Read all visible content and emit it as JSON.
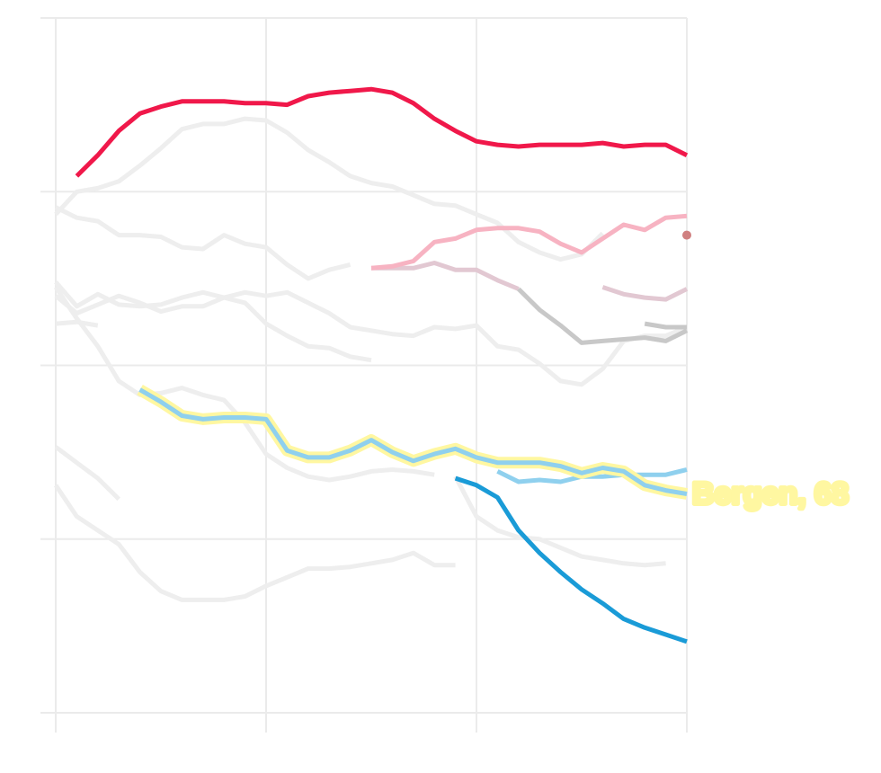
{
  "chart_data": {
    "type": "line",
    "x": [
      0,
      1,
      2,
      3,
      4,
      5,
      6,
      7,
      8,
      9,
      10,
      11,
      12,
      13,
      14,
      15,
      16,
      17,
      18,
      19,
      20,
      21,
      22,
      23,
      24,
      25,
      26,
      27,
      28,
      29,
      30
    ],
    "xlim": [
      0,
      30
    ],
    "xticks": [
      0,
      10,
      20,
      30
    ],
    "ylim": [
      0,
      400
    ],
    "yticks": [
      0,
      100,
      200,
      300,
      400
    ],
    "grid": true,
    "series": [
      {
        "color": "#eeeeee",
        "values": [
          287,
          300,
          302,
          306,
          315,
          325,
          336,
          339,
          339,
          342,
          341,
          334,
          324,
          317,
          309,
          305,
          303,
          298,
          293,
          292,
          287,
          282,
          271,
          265,
          261,
          264,
          276,
          null,
          null,
          null,
          null
        ]
      },
      {
        "color": "#eeeeee",
        "values": [
          291,
          285,
          283,
          275,
          275,
          274,
          268,
          267,
          275,
          270,
          268,
          258,
          250,
          255,
          258,
          null,
          null,
          null,
          null,
          null,
          null,
          null,
          null,
          null,
          null,
          null,
          null,
          null,
          null,
          null,
          null
        ]
      },
      {
        "color": "#eeeeee",
        "values": [
          248,
          234,
          241,
          235,
          234,
          235,
          239,
          242,
          239,
          242,
          240,
          242,
          236,
          230,
          222,
          220,
          218,
          217,
          222,
          221,
          223,
          211,
          209,
          201,
          191,
          189,
          198,
          214,
          217,
          217,
          222
        ]
      },
      {
        "color": "#eeeeee",
        "values": [
          240,
          230,
          235,
          240,
          236,
          231,
          234,
          234,
          239,
          236,
          224,
          217,
          211,
          210,
          205,
          203,
          null,
          null,
          null,
          null,
          null,
          null,
          null,
          null,
          null,
          null,
          null,
          null,
          null,
          null,
          null
        ]
      },
      {
        "color": "#eeeeee",
        "values": [
          245,
          227,
          211,
          191,
          183,
          184,
          187,
          183,
          180,
          167,
          149,
          141,
          136,
          134,
          136,
          139,
          140,
          139,
          137,
          null,
          null,
          null,
          null,
          null,
          null,
          null,
          null,
          null,
          null,
          null,
          null
        ]
      },
      {
        "color": "#eeeeee",
        "values": [
          131,
          113,
          105,
          97,
          81,
          70,
          65,
          65,
          65,
          67,
          73,
          78,
          83,
          83,
          84,
          86,
          88,
          92,
          85,
          85,
          null,
          null,
          null,
          null,
          null,
          null,
          null,
          null,
          null,
          null,
          null
        ]
      },
      {
        "color": "#eeeeee",
        "values": [
          153,
          144,
          135,
          123,
          null,
          null,
          null,
          null,
          null,
          null,
          null,
          null,
          null,
          null,
          null,
          null,
          null,
          null,
          null,
          null,
          null,
          null,
          null,
          null,
          null,
          null,
          null,
          null,
          null,
          null,
          null
        ]
      },
      {
        "color": "#eeeeee",
        "values": [
          null,
          null,
          null,
          null,
          null,
          null,
          null,
          null,
          null,
          null,
          null,
          null,
          null,
          null,
          null,
          null,
          null,
          null,
          null,
          136,
          113,
          105,
          101,
          100,
          95,
          90,
          88,
          86,
          85,
          86,
          null
        ]
      },
      {
        "color": "#eeeeee",
        "values": [
          224,
          225,
          223,
          null,
          null,
          null,
          null,
          null,
          null,
          null,
          null,
          null,
          null,
          null,
          null,
          null,
          null,
          null,
          null,
          null,
          null,
          null,
          null,
          null,
          null,
          null,
          null,
          null,
          null,
          null,
          null
        ]
      },
      {
        "color": "#e2c8d2",
        "values": [
          null,
          null,
          null,
          null,
          null,
          null,
          null,
          null,
          null,
          null,
          null,
          null,
          null,
          null,
          null,
          256,
          256,
          256,
          259,
          255,
          255,
          249,
          244,
          null,
          null,
          null,
          null,
          null,
          null,
          null,
          null
        ]
      },
      {
        "color": "#c8c8c8",
        "values": [
          null,
          null,
          null,
          null,
          null,
          null,
          null,
          null,
          null,
          null,
          null,
          null,
          null,
          null,
          null,
          null,
          null,
          null,
          null,
          null,
          null,
          null,
          244,
          232,
          223,
          213,
          214,
          215,
          216,
          214,
          220
        ]
      },
      {
        "color": "#e2c8d2",
        "values": [
          null,
          null,
          null,
          null,
          null,
          null,
          null,
          null,
          null,
          null,
          null,
          null,
          null,
          null,
          null,
          null,
          null,
          null,
          null,
          null,
          null,
          null,
          null,
          null,
          null,
          null,
          245,
          241,
          239,
          238,
          244
        ]
      },
      {
        "color": "#c8c8c8",
        "values": [
          null,
          null,
          null,
          null,
          null,
          null,
          null,
          null,
          null,
          null,
          null,
          null,
          null,
          null,
          null,
          null,
          null,
          null,
          null,
          null,
          null,
          null,
          null,
          null,
          null,
          null,
          null,
          null,
          224,
          222,
          222
        ]
      },
      {
        "color": "#f7b3c2",
        "values": [
          null,
          null,
          null,
          null,
          null,
          null,
          null,
          null,
          null,
          null,
          null,
          null,
          null,
          null,
          null,
          256,
          257,
          260,
          271,
          273,
          278,
          279,
          279,
          277,
          270,
          265,
          273,
          281,
          278,
          285,
          286
        ]
      },
      {
        "color": "#d08080",
        "values": [
          null,
          null,
          null,
          null,
          null,
          null,
          null,
          null,
          null,
          null,
          null,
          null,
          null,
          null,
          null,
          null,
          null,
          null,
          null,
          null,
          null,
          null,
          null,
          null,
          null,
          null,
          null,
          null,
          null,
          null,
          275
        ]
      },
      {
        "color": "#f0184a",
        "values": [
          null,
          309,
          321,
          335,
          345,
          349,
          352,
          352,
          352,
          351,
          351,
          350,
          355,
          357,
          358,
          359,
          357,
          351,
          342,
          335,
          329,
          327,
          326,
          327,
          327,
          327,
          328,
          326,
          327,
          327,
          321
        ]
      },
      {
        "color": "#8fd0ee",
        "values": [
          null,
          null,
          null,
          null,
          null,
          null,
          null,
          null,
          null,
          null,
          null,
          null,
          null,
          null,
          null,
          null,
          null,
          null,
          null,
          null,
          null,
          139,
          133,
          134,
          133,
          136,
          136,
          137,
          137,
          137,
          140
        ]
      },
      {
        "color": "#1a9bd7",
        "values": [
          null,
          null,
          null,
          null,
          null,
          null,
          null,
          null,
          null,
          null,
          null,
          null,
          null,
          null,
          null,
          null,
          null,
          null,
          null,
          135,
          131,
          124,
          105,
          92,
          81,
          71,
          63,
          54,
          49,
          45,
          41
        ]
      },
      {
        "color": "#8fd0ee",
        "highlight": "#fff7a1",
        "values": [
          null,
          null,
          null,
          null,
          186,
          179,
          171,
          169,
          170,
          170,
          169,
          151,
          147,
          147,
          151,
          157,
          150,
          145,
          149,
          152,
          147,
          144,
          144,
          144,
          142,
          138,
          141,
          139,
          131,
          128,
          126
        ]
      }
    ],
    "annotation": "Bergen, 68"
  }
}
